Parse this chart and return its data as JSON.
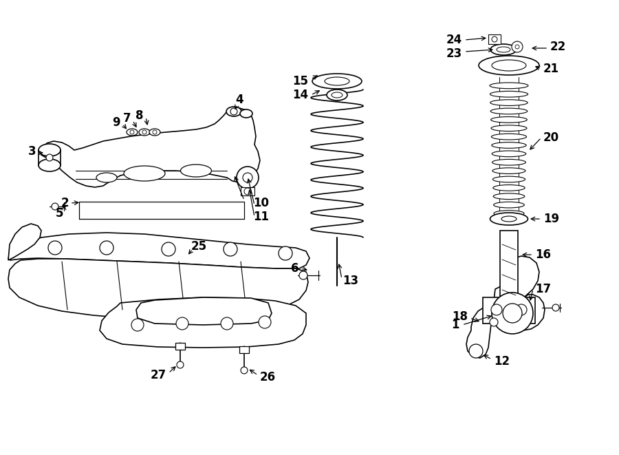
{
  "bg": "#ffffff",
  "lc": "#000000",
  "fw": 9.0,
  "fh": 6.61,
  "dpi": 100,
  "xlim": [
    0,
    900
  ],
  "ylim": [
    0,
    661
  ]
}
